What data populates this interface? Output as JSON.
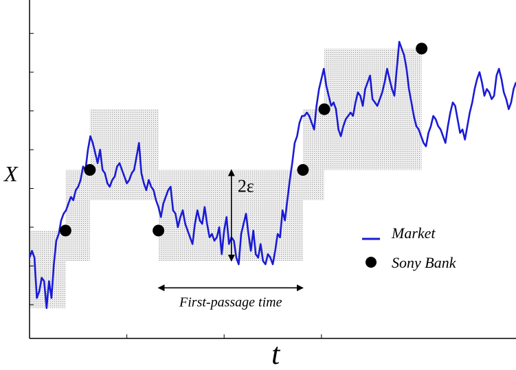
{
  "chart_data": {
    "type": "line",
    "xlabel": "t",
    "ylabel": "X",
    "xlim": [
      0,
      100
    ],
    "ylim": [
      0,
      100
    ],
    "grid": false,
    "legend_placement": "bottom-right",
    "series": [
      {
        "name": "Market",
        "color": "#1a1ad6",
        "style": "line",
        "x": [
          0,
          0.5,
          1,
          1.5,
          2,
          2.5,
          3,
          3.5,
          4,
          4.5,
          5,
          5.5,
          6,
          6.5,
          7,
          7.5,
          8,
          8.5,
          9,
          9.5,
          10,
          10.5,
          11,
          11.5,
          12,
          12.5,
          13,
          13.5,
          14,
          14.5,
          15,
          15.5,
          16,
          16.5,
          17,
          17.5,
          18,
          18.5,
          19,
          19.5,
          20,
          20.5,
          21,
          21.5,
          22,
          22.5,
          23,
          23.5,
          24,
          24.5,
          25,
          25.5,
          26,
          26.5,
          27,
          27.5,
          28,
          28.5,
          29,
          29.5,
          30,
          30.5,
          31,
          31.5,
          32,
          32.5,
          33,
          33.5,
          34,
          34.5,
          35,
          35.5,
          36,
          36.5,
          37,
          37.5,
          38,
          38.5,
          39,
          39.5,
          40,
          40.5,
          41,
          41.5,
          42,
          42.5,
          43,
          43.5,
          44,
          44.5,
          45,
          45.5,
          46,
          46.5,
          47,
          47.5,
          48,
          48.5,
          49,
          49.5,
          50,
          50.5,
          51,
          51.5,
          52,
          52.5,
          53,
          53.5,
          54,
          54.5,
          55,
          55.5,
          56,
          56.5,
          57,
          57.5,
          58,
          58.5,
          59,
          59.5,
          60,
          60.5,
          61,
          61.5,
          62,
          62.5,
          63,
          63.5,
          64,
          64.5,
          65,
          65.5,
          66,
          66.5,
          67,
          67.5,
          68,
          68.5,
          69,
          69.5,
          70,
          70.5,
          71,
          71.5,
          72,
          72.5,
          73,
          73.5,
          74,
          74.5,
          75,
          75.5,
          76,
          76.5,
          77,
          77.5,
          78,
          78.5,
          79,
          79.5,
          80,
          80.5,
          81,
          81.5,
          82,
          82.5,
          83,
          83.5,
          84,
          84.5,
          85,
          85.5,
          86,
          86.5,
          87,
          87.5,
          88,
          88.5,
          89,
          89.5,
          90,
          90.5,
          91,
          91.5,
          92,
          92.5,
          93,
          93.5,
          94,
          94.5,
          95,
          95.5,
          96,
          96.5,
          97,
          97.5,
          98,
          98.5,
          99,
          99.5,
          100
        ],
        "y": [
          24,
          26,
          24,
          12,
          14,
          18,
          17,
          9,
          17,
          12,
          22,
          29,
          31,
          35,
          37,
          38,
          40,
          42,
          41,
          44,
          45,
          47,
          51,
          50,
          56,
          60,
          58,
          55,
          52,
          56,
          50,
          49,
          46,
          45,
          47,
          48,
          51,
          52,
          50,
          48,
          46,
          47,
          49,
          50,
          54,
          58,
          49,
          46,
          44,
          47,
          45,
          44,
          41,
          39,
          36,
          40,
          42,
          44,
          45,
          38,
          37,
          33,
          36,
          38,
          34,
          32,
          30,
          28,
          34,
          38,
          35,
          34,
          39,
          34,
          30,
          31,
          29,
          30,
          33,
          25,
          32,
          36,
          28,
          30,
          29,
          24,
          22,
          31,
          34,
          37,
          31,
          26,
          32,
          25,
          24,
          28,
          23,
          22,
          25,
          24,
          22,
          26,
          31,
          30,
          38,
          35,
          41,
          47,
          52,
          58,
          60,
          64,
          66,
          66,
          67,
          66,
          64,
          62,
          69,
          74,
          77,
          80,
          75,
          72,
          69,
          70,
          68,
          62,
          60,
          63,
          65,
          66,
          67,
          66,
          70,
          73,
          72,
          69,
          74,
          76,
          78,
          71,
          70,
          69,
          71,
          73,
          76,
          80,
          77,
          74,
          72,
          80,
          88,
          86,
          84,
          80,
          74,
          70,
          66,
          63,
          62,
          60,
          58,
          57,
          61,
          63,
          66,
          65,
          63,
          62,
          60,
          58,
          63,
          67,
          70,
          69,
          65,
          61,
          62,
          59,
          63,
          67,
          70,
          74,
          77,
          79,
          76,
          72,
          74,
          73,
          71,
          72,
          78,
          80,
          77,
          73,
          71,
          68,
          70,
          74,
          76
        ]
      },
      {
        "name": "Sony Bank",
        "color": "#000000",
        "style": "marker",
        "x": [
          7.4,
          12.4,
          26.5,
          56.2,
          60.6,
          80.6
        ],
        "y": [
          32,
          50,
          32,
          50,
          68,
          86
        ]
      }
    ],
    "annotations": [
      {
        "text": "2ε",
        "type": "vertical-arrow",
        "x": 41.5,
        "y_from": 23,
        "y_to": 50
      },
      {
        "text": "First-passage time",
        "type": "horizontal-arrow",
        "y": 15,
        "x_from": 26.5,
        "x_to": 56.2
      }
    ],
    "shaded_regions": [
      {
        "x": [
          0,
          7.4
        ],
        "y": [
          9,
          32
        ]
      },
      {
        "x": [
          7.4,
          12.4
        ],
        "y": [
          23,
          50
        ]
      },
      {
        "x": [
          12.4,
          26.5
        ],
        "y": [
          41,
          68
        ]
      },
      {
        "x": [
          26.5,
          56.2
        ],
        "y": [
          23,
          50
        ]
      },
      {
        "x": [
          56.2,
          60.6
        ],
        "y": [
          41,
          68
        ]
      },
      {
        "x": [
          60.6,
          80.6
        ],
        "y": [
          50,
          86
        ]
      }
    ]
  }
}
